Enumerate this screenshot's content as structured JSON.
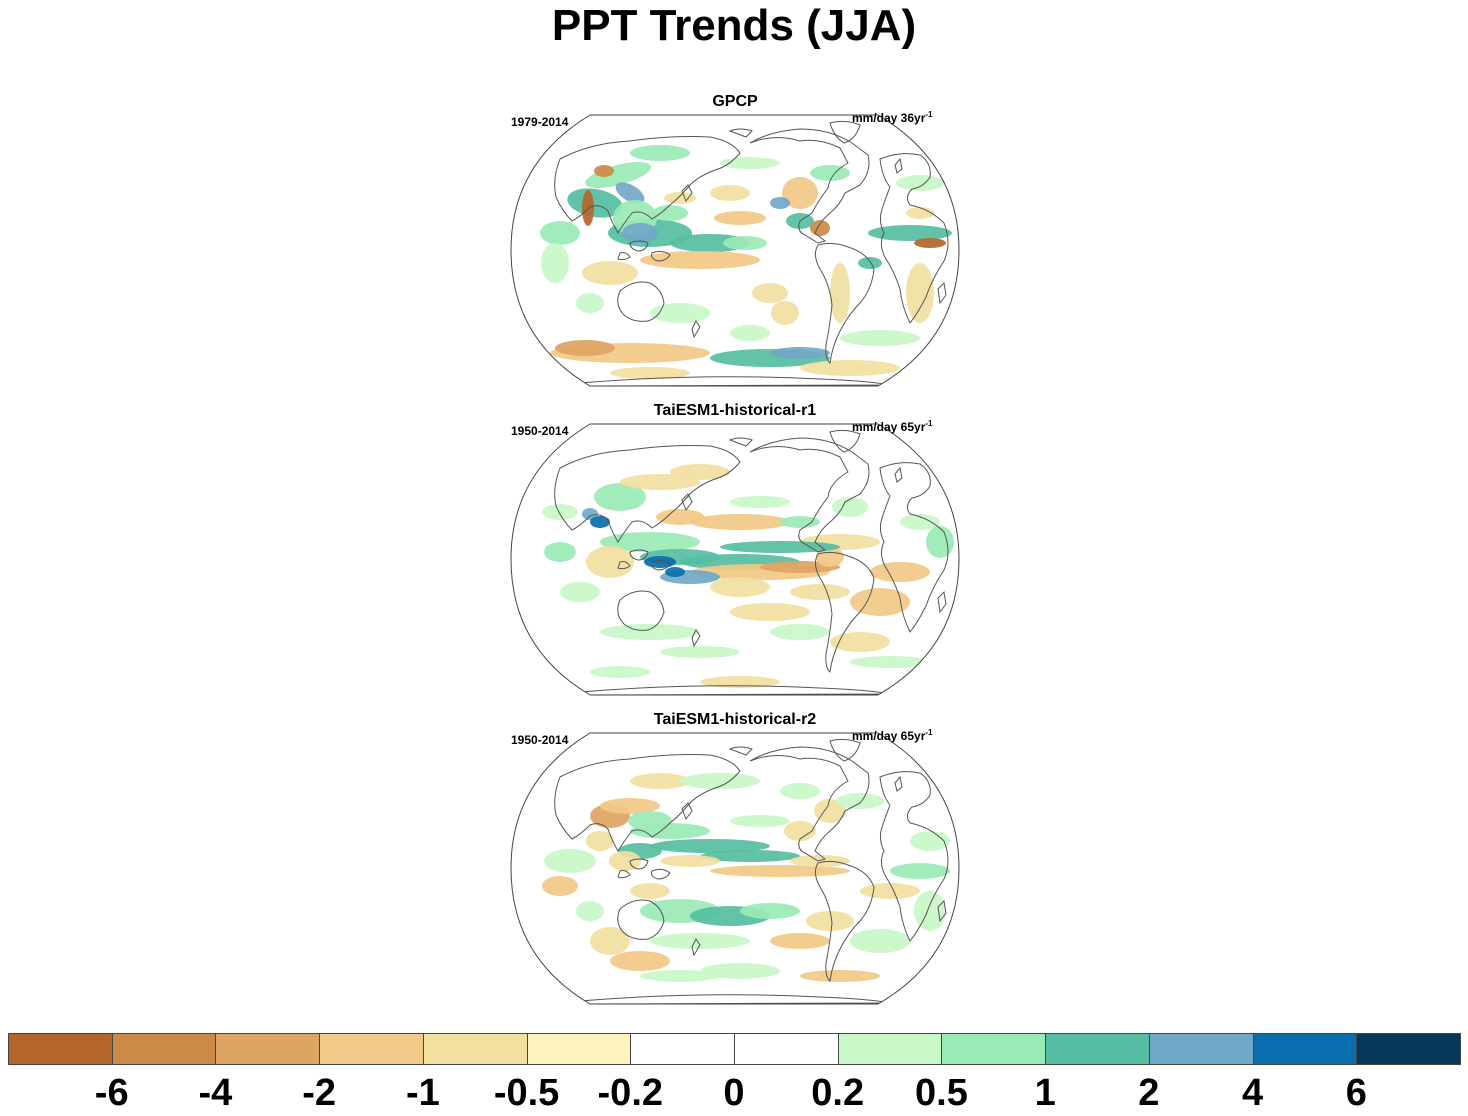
{
  "title": "PPT Trends (JJA)",
  "panels": [
    {
      "title": "GPCP",
      "period": "1979-2014",
      "units_base": "mm/day 36yr",
      "units_exp": "-1"
    },
    {
      "title": "TaiESM1-historical-r1",
      "period": "1950-2014",
      "units_base": "mm/day 65yr",
      "units_exp": "-1"
    },
    {
      "title": "TaiESM1-historical-r2",
      "period": "1950-2014",
      "units_base": "mm/day 65yr",
      "units_exp": "-1"
    }
  ],
  "colorbar": {
    "colors": [
      "#b5652a",
      "#cc8a46",
      "#dea463",
      "#f2c986",
      "#f2e0a0",
      "#fdf4c0",
      "#ffffff",
      "#ffffff",
      "#c8f7c8",
      "#9aeab6",
      "#55bea2",
      "#70a8c8",
      "#0a6eae",
      "#05385a"
    ],
    "labels": [
      "-6",
      "-4",
      "-2",
      "-1",
      "-0.5",
      "-0.2",
      "0",
      "0.2",
      "0.5",
      "1",
      "2",
      "4",
      "6"
    ]
  }
}
